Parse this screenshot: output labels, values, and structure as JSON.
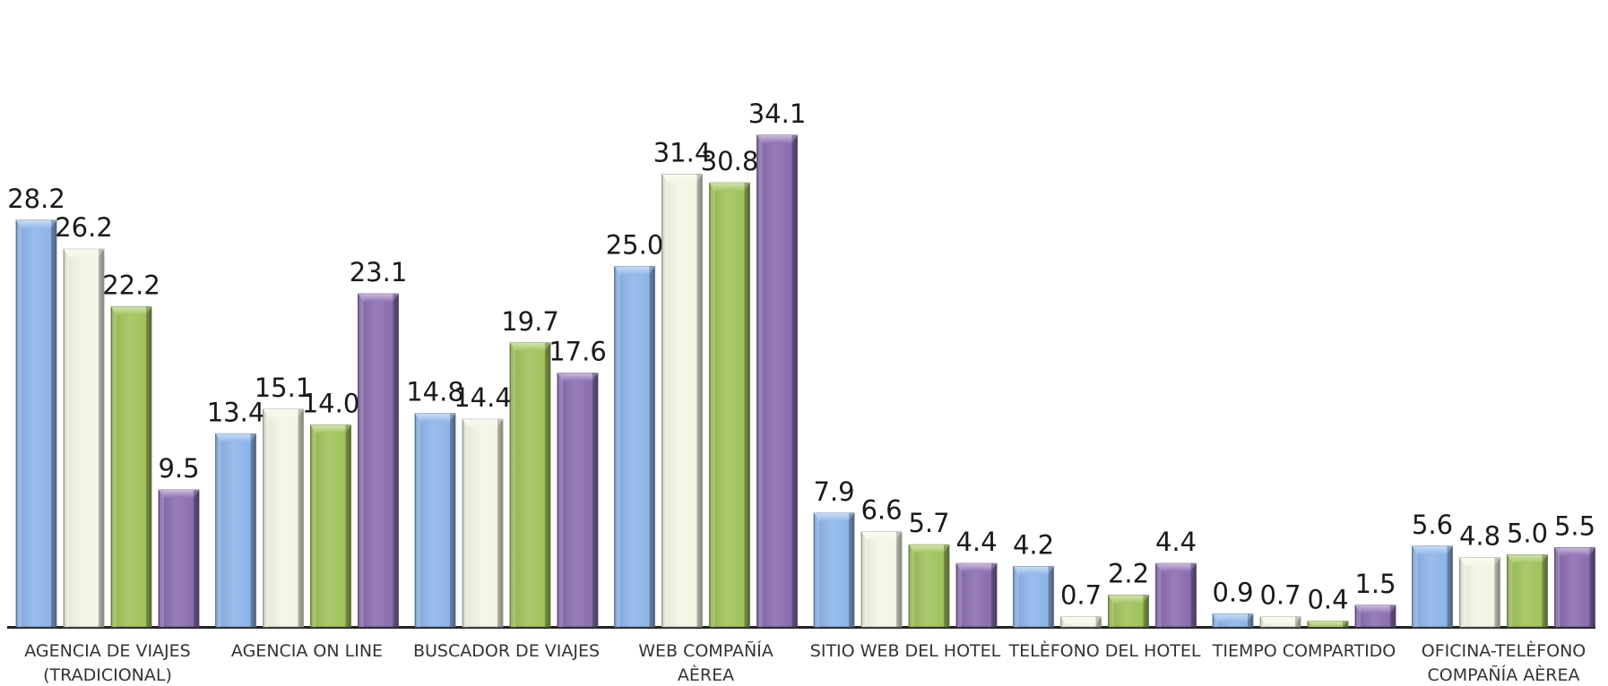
{
  "chart_data": {
    "type": "bar",
    "title": "",
    "xlabel": "",
    "ylabel": "",
    "ylim": [
      0,
      38
    ],
    "grid": false,
    "legend": "none",
    "categories": [
      [
        "AGENCIA DE VIAJES",
        "(TRADICIONAL)"
      ],
      [
        "AGENCIA ON LINE"
      ],
      [
        "BUSCADOR DE VIAJES"
      ],
      [
        "WEB COMPAÑÍA",
        "AÈREA"
      ],
      [
        "SITIO WEB DEL HOTEL"
      ],
      [
        "TELÈFONO DEL HOTEL"
      ],
      [
        "TIEMPO COMPARTIDO"
      ],
      [
        "OFICINA-TELÈFONO",
        "COMPAÑÍA AÈREA"
      ]
    ],
    "series": [
      {
        "color": "#8cb4e8",
        "values": [
          "28.2",
          "13.4",
          "14.8",
          "25.0",
          "7.9",
          "4.2",
          "0.9",
          "5.6"
        ]
      },
      {
        "color": "#f2f5e4",
        "values": [
          "26.2",
          "15.1",
          "14.4",
          "31.4",
          "6.6",
          "0.7",
          "0.7",
          "4.8"
        ]
      },
      {
        "color": "#9fc25a",
        "values": [
          "22.2",
          "14.0",
          "19.7",
          "30.8",
          "5.7",
          "2.2",
          "0.4",
          "5.0"
        ]
      },
      {
        "color": "#8a6cb0",
        "values": [
          "9.5",
          "23.1",
          "17.6",
          "34.1",
          "4.4",
          "4.4",
          "1.5",
          "5.5"
        ]
      }
    ]
  }
}
